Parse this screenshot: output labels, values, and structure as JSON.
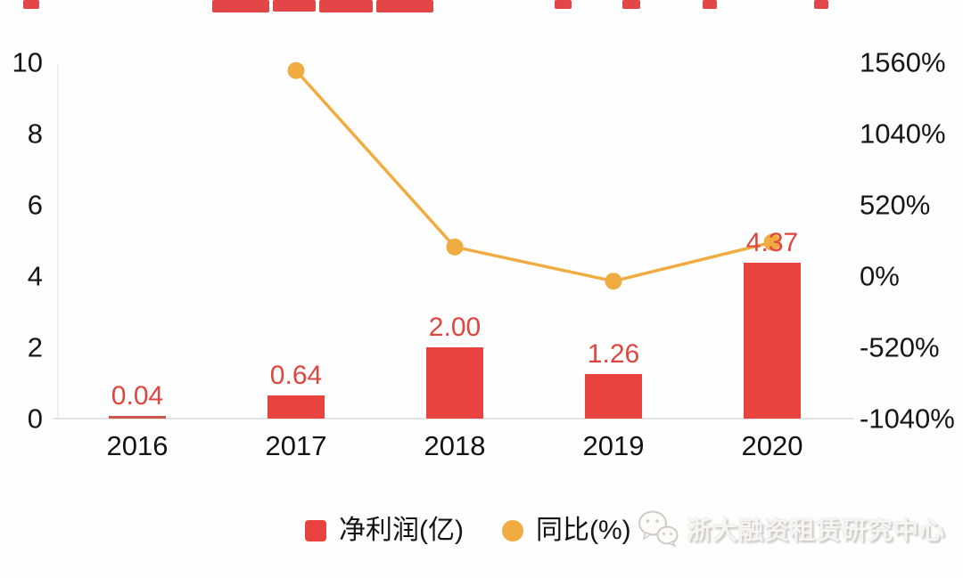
{
  "chart_data": {
    "type": "bar",
    "combo": "bar+line, dual y-axis",
    "categories": [
      "2016",
      "2017",
      "2018",
      "2019",
      "2020"
    ],
    "series": [
      {
        "name": "净利润(亿)",
        "type": "bar",
        "axis": "left",
        "color": "#e8433f",
        "values": [
          0.04,
          0.64,
          2.0,
          1.26,
          4.37
        ],
        "data_labels": [
          "0.04",
          "0.64",
          "2.00",
          "1.26",
          "4.37"
        ]
      },
      {
        "name": "同比(%)",
        "type": "line",
        "axis": "right",
        "color": "#f0ac41",
        "values": [
          null,
          1500,
          212.5,
          -37,
          246.8
        ]
      }
    ],
    "left_axis": {
      "ticks": [
        0,
        2,
        4,
        6,
        8,
        10
      ],
      "range": [
        0,
        10
      ]
    },
    "right_axis": {
      "ticks": [
        "1560%",
        "1040%",
        "520%",
        "0%",
        "-520%",
        "-1040%"
      ],
      "range": [
        -1040,
        1560
      ]
    },
    "legend": {
      "position": "bottom",
      "items": [
        {
          "label": "净利润(亿)",
          "swatch": "square",
          "color": "#e8433f"
        },
        {
          "label": "同比(%)",
          "swatch": "circle",
          "color": "#f0ac41"
        }
      ]
    },
    "grid": false
  },
  "watermark": {
    "text": "浙大融资租赁研究中心",
    "icon": "wechat-icon"
  },
  "artifacts": {
    "description": "red fragments of a cropped title line at top edge",
    "color": "#e23c3c",
    "fragments": [
      [
        26,
        18,
        10
      ],
      [
        238,
        64,
        14
      ],
      [
        306,
        48,
        13
      ],
      [
        358,
        60,
        14
      ],
      [
        422,
        64,
        14
      ],
      [
        622,
        19,
        10
      ],
      [
        698,
        20,
        10
      ],
      [
        788,
        16,
        10
      ],
      [
        913,
        16,
        10
      ]
    ]
  },
  "colors": {
    "bar_red": "#e8433f",
    "line_yellow": "#f0ac41",
    "axis_text": "#161616",
    "axis_line": "#e3e3e3",
    "background": "#ffffff"
  }
}
